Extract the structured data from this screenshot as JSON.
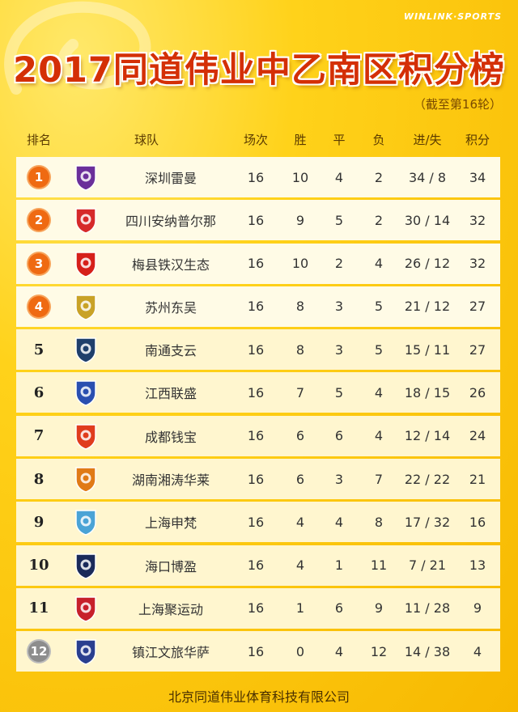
{
  "brand": "WINLINK·SPORTS",
  "title": "2017同道伟业中乙南区积分榜",
  "subtitle": "（截至第16轮）",
  "headers": {
    "rank": "排名",
    "team": "球队",
    "games": "场次",
    "w": "胜",
    "d": "平",
    "l": "负",
    "gd": "进/失",
    "pts": "积分"
  },
  "rows": [
    {
      "rank": "1",
      "team": "深圳雷曼",
      "games": "16",
      "w": "10",
      "d": "4",
      "l": "2",
      "gd": "34 / 8",
      "pts": "34",
      "logo_color": "#6b2f9a"
    },
    {
      "rank": "2",
      "team": "四川安纳普尔那",
      "games": "16",
      "w": "9",
      "d": "5",
      "l": "2",
      "gd": "30 / 14",
      "pts": "32",
      "logo_color": "#d62a2a"
    },
    {
      "rank": "3",
      "team": "梅县铁汉生态",
      "games": "16",
      "w": "10",
      "d": "2",
      "l": "4",
      "gd": "26 / 12",
      "pts": "32",
      "logo_color": "#d6201a"
    },
    {
      "rank": "4",
      "team": "苏州东吴",
      "games": "16",
      "w": "8",
      "d": "3",
      "l": "5",
      "gd": "21 / 12",
      "pts": "27",
      "logo_color": "#c9a227"
    },
    {
      "rank": "5",
      "team": "南通支云",
      "games": "16",
      "w": "8",
      "d": "3",
      "l": "5",
      "gd": "15 / 11",
      "pts": "27",
      "logo_color": "#1f3f6b"
    },
    {
      "rank": "6",
      "team": "江西联盛",
      "games": "16",
      "w": "7",
      "d": "5",
      "l": "4",
      "gd": "18 / 15",
      "pts": "26",
      "logo_color": "#2a4fb0"
    },
    {
      "rank": "7",
      "team": "成都钱宝",
      "games": "16",
      "w": "6",
      "d": "6",
      "l": "4",
      "gd": "12 / 14",
      "pts": "24",
      "logo_color": "#e03c1c"
    },
    {
      "rank": "8",
      "team": "湖南湘涛华莱",
      "games": "16",
      "w": "6",
      "d": "3",
      "l": "7",
      "gd": "22 / 22",
      "pts": "21",
      "logo_color": "#e07a16"
    },
    {
      "rank": "9",
      "team": "上海申梵",
      "games": "16",
      "w": "4",
      "d": "4",
      "l": "8",
      "gd": "17 / 32",
      "pts": "16",
      "logo_color": "#4aa3d6"
    },
    {
      "rank": "10",
      "team": "海口博盈",
      "games": "16",
      "w": "4",
      "d": "1",
      "l": "11",
      "gd": "7 / 21",
      "pts": "13",
      "logo_color": "#1a2a5a"
    },
    {
      "rank": "11",
      "team": "上海聚运动",
      "games": "16",
      "w": "1",
      "d": "6",
      "l": "9",
      "gd": "11 / 28",
      "pts": "9",
      "logo_color": "#c7202a"
    },
    {
      "rank": "12",
      "team": "镇江文旅华萨",
      "games": "16",
      "w": "0",
      "d": "4",
      "l": "12",
      "gd": "14 / 38",
      "pts": "4",
      "logo_color": "#2a3f8f"
    }
  ],
  "footer": "北京同道伟业体育科技有限公司"
}
